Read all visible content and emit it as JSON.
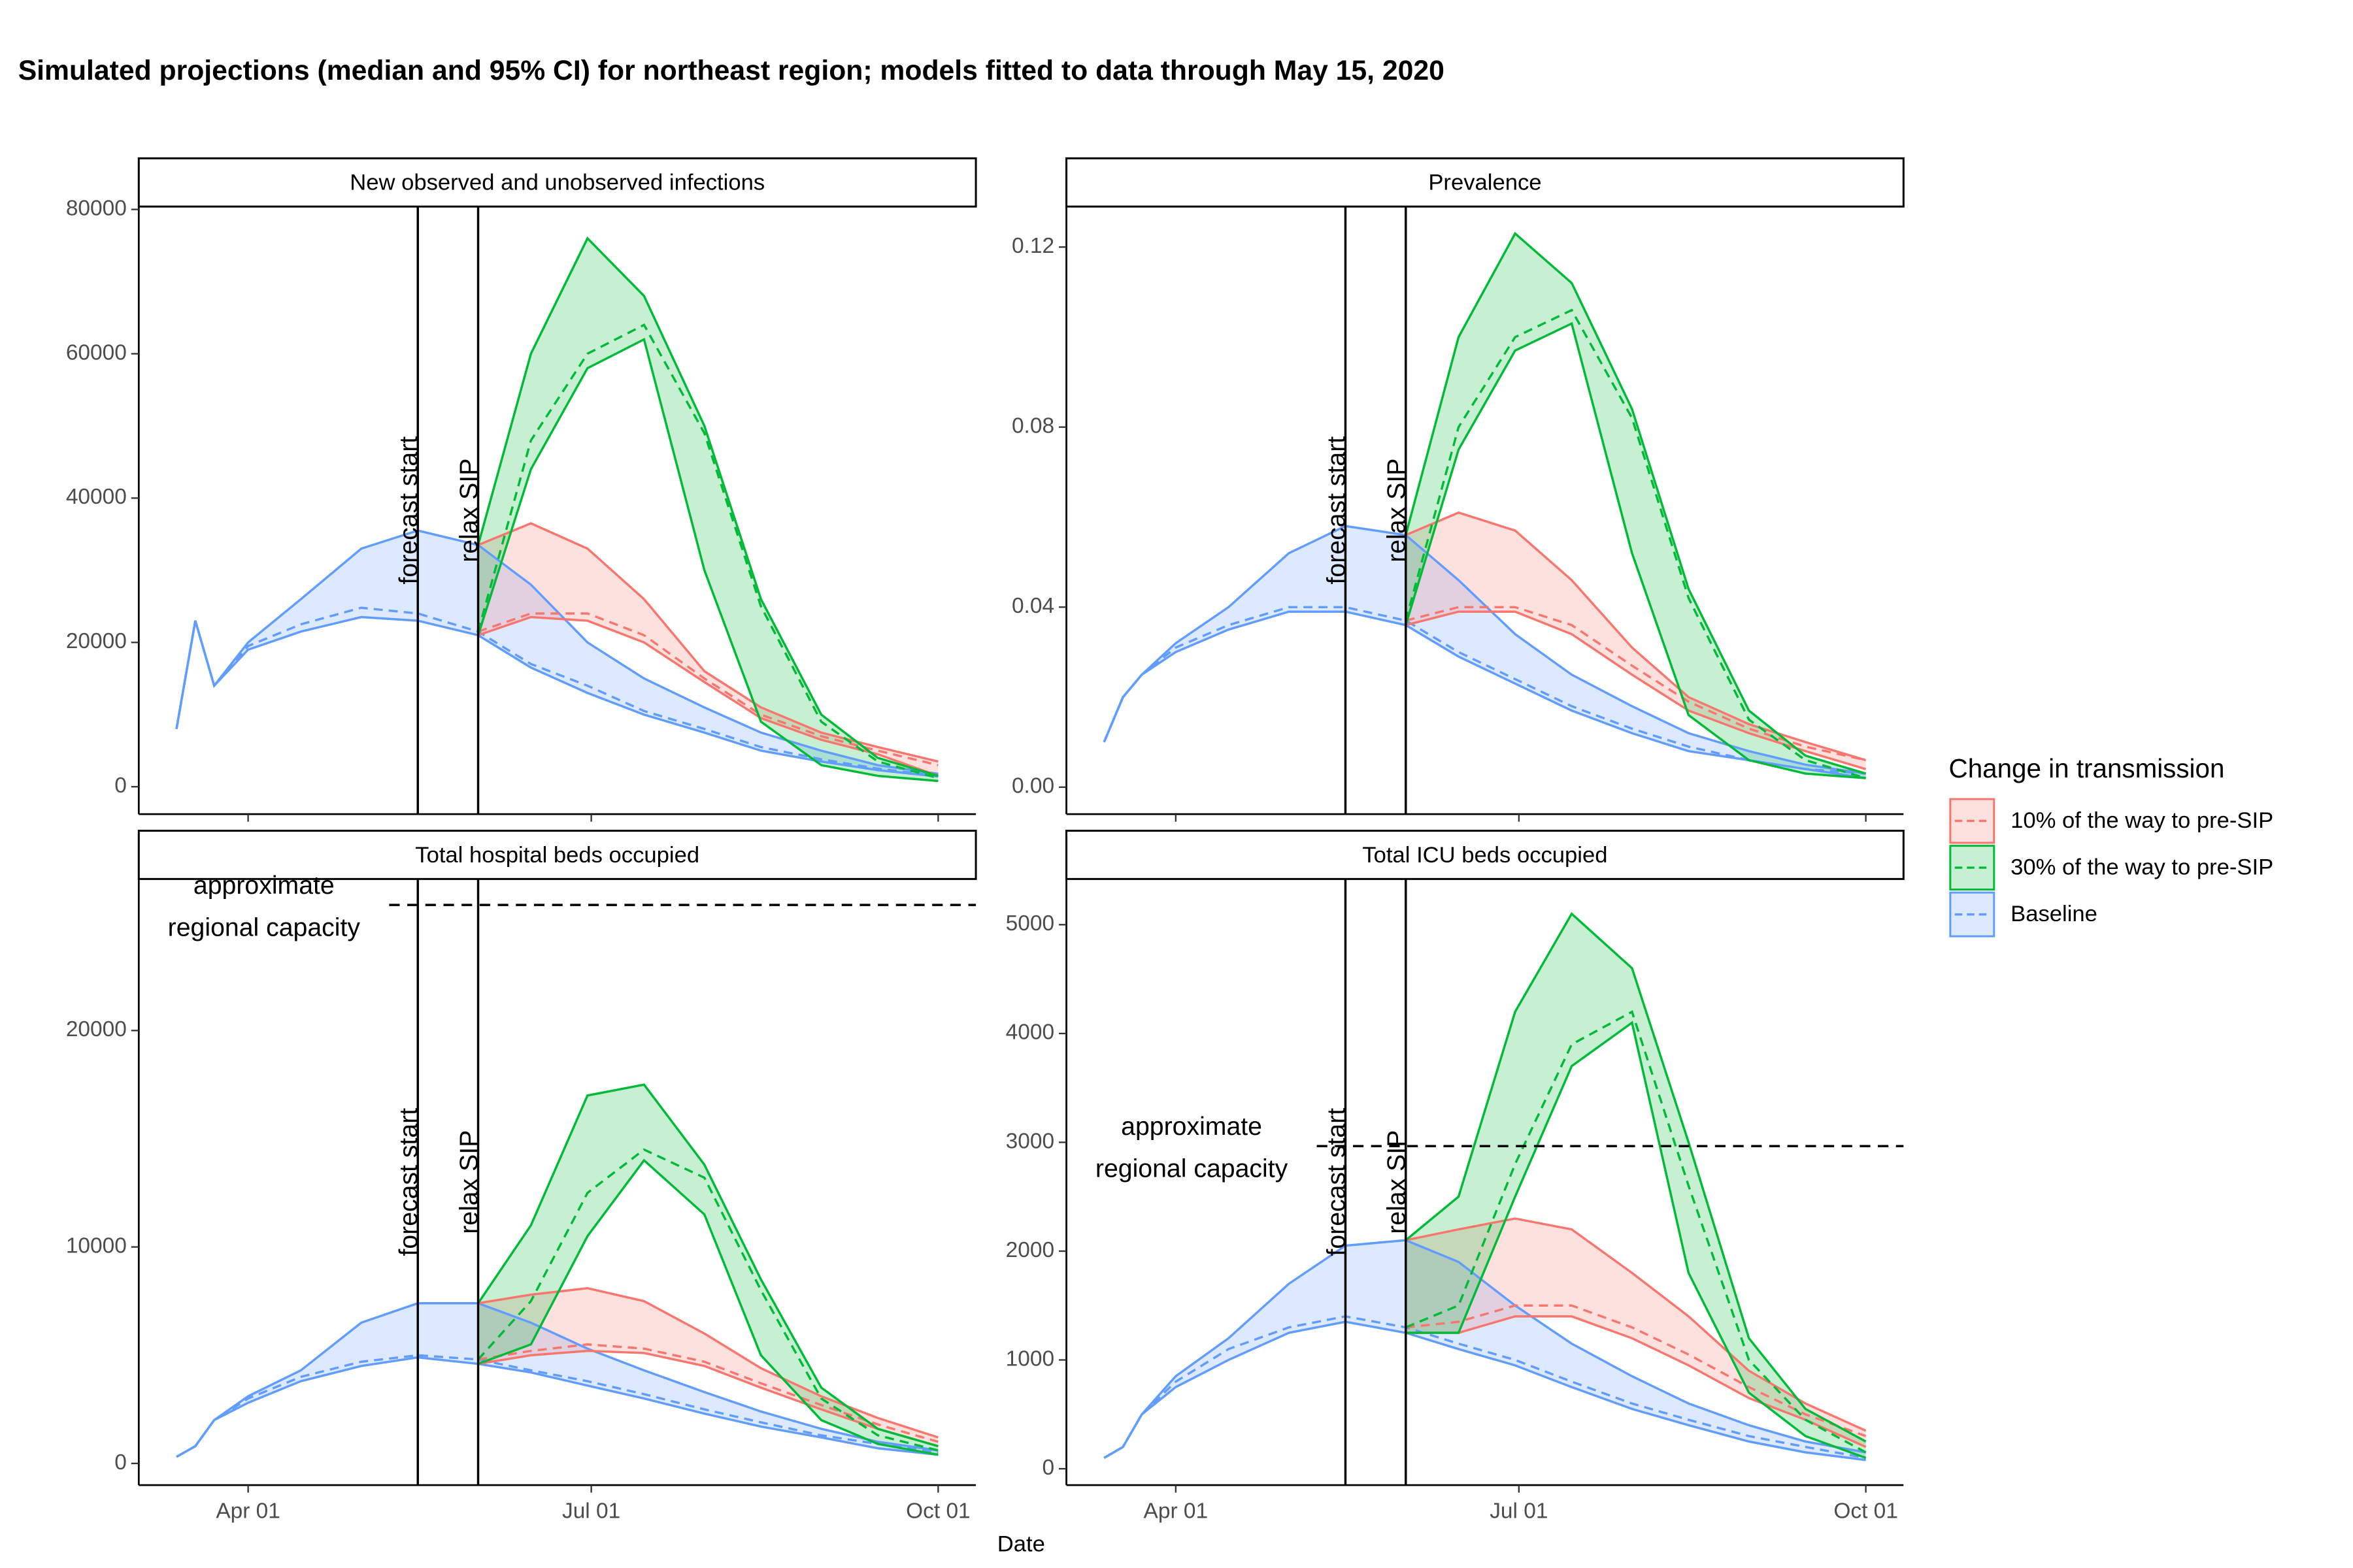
{
  "chart_data": {
    "type": "line",
    "title": "Simulated projections (median and 95% CI) for northeast region; models fitted to data through May 15, 2020",
    "x_label": "Date",
    "legend_title": "Change in transmission",
    "legend_position": "right",
    "legend": [
      {
        "name": "10% of the way to pre-SIP",
        "color": "#F8766D"
      },
      {
        "name": "30% of the way to pre-SIP",
        "color": "#00BA38"
      },
      {
        "name": "Baseline",
        "color": "#619CFF"
      }
    ],
    "x": [
      "03-13",
      "03-18",
      "03-23",
      "04-01",
      "04-15",
      "05-01",
      "05-16",
      "06-01",
      "06-15",
      "06-30",
      "07-15",
      "07-31",
      "08-15",
      "08-31",
      "09-15",
      "10-01"
    ],
    "xlim": [
      "03-03",
      "10-11"
    ],
    "xticks": [
      {
        "value": "04-01",
        "label": "Apr 01"
      },
      {
        "value": "07-01",
        "label": "Jul 01"
      },
      {
        "value": "10-01",
        "label": "Oct 01"
      }
    ],
    "panels": [
      {
        "title": "New observed and unobserved infections",
        "ylim": [
          -3800,
          80400
        ],
        "yticks": [
          0,
          20000,
          40000,
          60000,
          80000
        ],
        "vlines": [
          {
            "x": "05-16",
            "label": "forecast start"
          },
          {
            "x": "06-01",
            "label": "relax SIP"
          }
        ],
        "series": [
          {
            "lower": [
              null,
              null,
              null,
              null,
              null,
              null,
              null,
              21000,
              23500,
              23000,
              20000,
              14500,
              9500,
              6500,
              4500,
              1500
            ],
            "values": [
              null,
              null,
              null,
              null,
              null,
              null,
              null,
              21500,
              24000,
              24000,
              21000,
              15000,
              10000,
              7000,
              5000,
              3000
            ],
            "upper": [
              null,
              null,
              null,
              null,
              null,
              null,
              null,
              33500,
              36500,
              33000,
              26000,
              16000,
              11000,
              7500,
              5500,
              3500
            ]
          },
          {
            "lower": [
              null,
              null,
              null,
              null,
              null,
              null,
              null,
              21000,
              44000,
              58000,
              62000,
              30000,
              9000,
              3000,
              1500,
              800
            ],
            "values": [
              null,
              null,
              null,
              null,
              null,
              null,
              null,
              21500,
              48000,
              60000,
              64000,
              49000,
              25000,
              9000,
              3500,
              1200
            ],
            "upper": [
              null,
              null,
              null,
              null,
              null,
              null,
              null,
              33500,
              60000,
              76000,
              68000,
              50000,
              26000,
              10000,
              4000,
              1500
            ]
          },
          {
            "lower": [
              8000,
              23000,
              14000,
              19000,
              21500,
              23500,
              23000,
              21000,
              16500,
              13000,
              10000,
              7500,
              5000,
              3500,
              2300,
              1400
            ],
            "values": [
              8000,
              23000,
              14000,
              19500,
              22500,
              24800,
              24000,
              21500,
              17000,
              14000,
              10500,
              8000,
              5500,
              3800,
              2500,
              1500
            ],
            "upper": [
              8000,
              23000,
              14000,
              20000,
              26000,
              33000,
              35500,
              33500,
              28000,
              20000,
              15000,
              11000,
              7500,
              5000,
              3000,
              1800
            ]
          }
        ]
      },
      {
        "title": "Prevalence",
        "ylim": [
          -0.006,
          0.129
        ],
        "yticks": [
          {
            "value": 0,
            "label": "0.00"
          },
          0.04,
          0.08,
          0.12
        ],
        "vlines": [
          {
            "x": "05-16",
            "label": "forecast start"
          },
          {
            "x": "06-01",
            "label": "relax SIP"
          }
        ],
        "series": [
          {
            "lower": [
              null,
              null,
              null,
              null,
              null,
              null,
              null,
              0.036,
              0.039,
              0.039,
              0.034,
              0.025,
              0.017,
              0.012,
              0.008,
              0.004
            ],
            "values": [
              null,
              null,
              null,
              null,
              null,
              null,
              null,
              0.037,
              0.04,
              0.04,
              0.036,
              0.027,
              0.019,
              0.013,
              0.009,
              0.006
            ],
            "upper": [
              null,
              null,
              null,
              null,
              null,
              null,
              null,
              0.056,
              0.061,
              0.057,
              0.046,
              0.031,
              0.02,
              0.014,
              0.01,
              0.006
            ]
          },
          {
            "lower": [
              null,
              null,
              null,
              null,
              null,
              null,
              null,
              0.036,
              0.075,
              0.097,
              0.103,
              0.052,
              0.016,
              0.006,
              0.003,
              0.002
            ],
            "values": [
              null,
              null,
              null,
              null,
              null,
              null,
              null,
              0.037,
              0.08,
              0.1,
              0.106,
              0.082,
              0.042,
              0.015,
              0.006,
              0.002
            ],
            "upper": [
              null,
              null,
              null,
              null,
              null,
              null,
              null,
              0.056,
              0.1,
              0.123,
              0.112,
              0.084,
              0.044,
              0.017,
              0.007,
              0.003
            ]
          },
          {
            "lower": [
              0.01,
              0.02,
              0.025,
              0.03,
              0.035,
              0.039,
              0.039,
              0.036,
              0.029,
              0.023,
              0.017,
              0.012,
              0.008,
              0.006,
              0.004,
              0.002
            ],
            "values": [
              0.01,
              0.02,
              0.025,
              0.031,
              0.036,
              0.04,
              0.04,
              0.037,
              0.03,
              0.024,
              0.018,
              0.013,
              0.009,
              0.006,
              0.004,
              0.003
            ],
            "upper": [
              0.01,
              0.02,
              0.025,
              0.032,
              0.04,
              0.052,
              0.058,
              0.056,
              0.046,
              0.034,
              0.025,
              0.018,
              0.012,
              0.008,
              0.005,
              0.003
            ]
          }
        ]
      },
      {
        "title": "Total hospital beds occupied",
        "ylim": [
          -1000,
          27000
        ],
        "yticks": [
          0,
          10000,
          20000
        ],
        "vlines": [
          {
            "x": "05-16",
            "label": "forecast start"
          },
          {
            "x": "06-01",
            "label": "relax SIP"
          }
        ],
        "capacity": {
          "value": 25800,
          "label_lines": [
            "approximate",
            "regional capacity"
          ]
        },
        "series": [
          {
            "lower": [
              null,
              null,
              null,
              null,
              null,
              null,
              null,
              4600,
              5000,
              5200,
              5100,
              4500,
              3500,
              2500,
              1600,
              800
            ],
            "values": [
              null,
              null,
              null,
              null,
              null,
              null,
              null,
              4800,
              5200,
              5500,
              5300,
              4700,
              3700,
              2700,
              1800,
              1000
            ],
            "upper": [
              null,
              null,
              null,
              null,
              null,
              null,
              null,
              7400,
              7800,
              8100,
              7500,
              6000,
              4400,
              3100,
              2100,
              1200
            ]
          },
          {
            "lower": [
              null,
              null,
              null,
              null,
              null,
              null,
              null,
              4600,
              5500,
              10500,
              14000,
              11500,
              5000,
              2000,
              900,
              400
            ],
            "values": [
              null,
              null,
              null,
              null,
              null,
              null,
              null,
              4800,
              7500,
              12500,
              14500,
              13200,
              8000,
              3000,
              1300,
              600
            ],
            "upper": [
              null,
              null,
              null,
              null,
              null,
              null,
              null,
              7400,
              11000,
              17000,
              17500,
              13800,
              8500,
              3500,
              1600,
              800
            ]
          },
          {
            "lower": [
              300,
              800,
              2000,
              2800,
              3800,
              4500,
              4900,
              4600,
              4200,
              3600,
              3000,
              2300,
              1700,
              1200,
              700,
              400
            ],
            "values": [
              300,
              800,
              2000,
              3000,
              4000,
              4700,
              5000,
              4800,
              4300,
              3800,
              3200,
              2500,
              1900,
              1300,
              900,
              500
            ],
            "upper": [
              300,
              800,
              2000,
              3100,
              4300,
              6500,
              7400,
              7400,
              6500,
              5300,
              4300,
              3300,
              2400,
              1600,
              1000,
              600
            ]
          }
        ]
      },
      {
        "title": "Total ICU beds occupied",
        "ylim": [
          -150,
          5420
        ],
        "yticks": [
          0,
          1000,
          2000,
          3000,
          4000,
          5000
        ],
        "vlines": [
          {
            "x": "05-16",
            "label": "forecast start"
          },
          {
            "x": "06-01",
            "label": "relax SIP"
          }
        ],
        "capacity": {
          "value": 2965,
          "label_lines": [
            "approximate",
            "regional capacity"
          ]
        },
        "series": [
          {
            "lower": [
              null,
              null,
              null,
              null,
              null,
              null,
              null,
              1250,
              1250,
              1400,
              1400,
              1200,
              950,
              650,
              450,
              200
            ],
            "values": [
              null,
              null,
              null,
              null,
              null,
              null,
              null,
              1300,
              1350,
              1500,
              1500,
              1300,
              1050,
              750,
              500,
              300
            ],
            "upper": [
              null,
              null,
              null,
              null,
              null,
              null,
              null,
              2100,
              2200,
              2300,
              2200,
              1800,
              1400,
              900,
              600,
              350
            ]
          },
          {
            "lower": [
              null,
              null,
              null,
              null,
              null,
              null,
              null,
              1250,
              1250,
              2500,
              3700,
              4100,
              1800,
              700,
              300,
              100
            ],
            "values": [
              null,
              null,
              null,
              null,
              null,
              null,
              null,
              1300,
              1500,
              2800,
              3900,
              4200,
              2600,
              1000,
              450,
              150
            ],
            "upper": [
              null,
              null,
              null,
              null,
              null,
              null,
              null,
              2100,
              2500,
              4200,
              5100,
              4600,
              3000,
              1200,
              550,
              250
            ]
          },
          {
            "lower": [
              100,
              200,
              500,
              750,
              1000,
              1250,
              1350,
              1250,
              1100,
              950,
              750,
              550,
              400,
              250,
              150,
              80
            ],
            "values": [
              100,
              200,
              500,
              800,
              1100,
              1300,
              1400,
              1300,
              1150,
              1000,
              800,
              600,
              450,
              300,
              200,
              100
            ],
            "upper": [
              100,
              200,
              500,
              850,
              1200,
              1700,
              2050,
              2100,
              1900,
              1500,
              1150,
              850,
              600,
              400,
              250,
              150
            ]
          }
        ]
      }
    ]
  }
}
